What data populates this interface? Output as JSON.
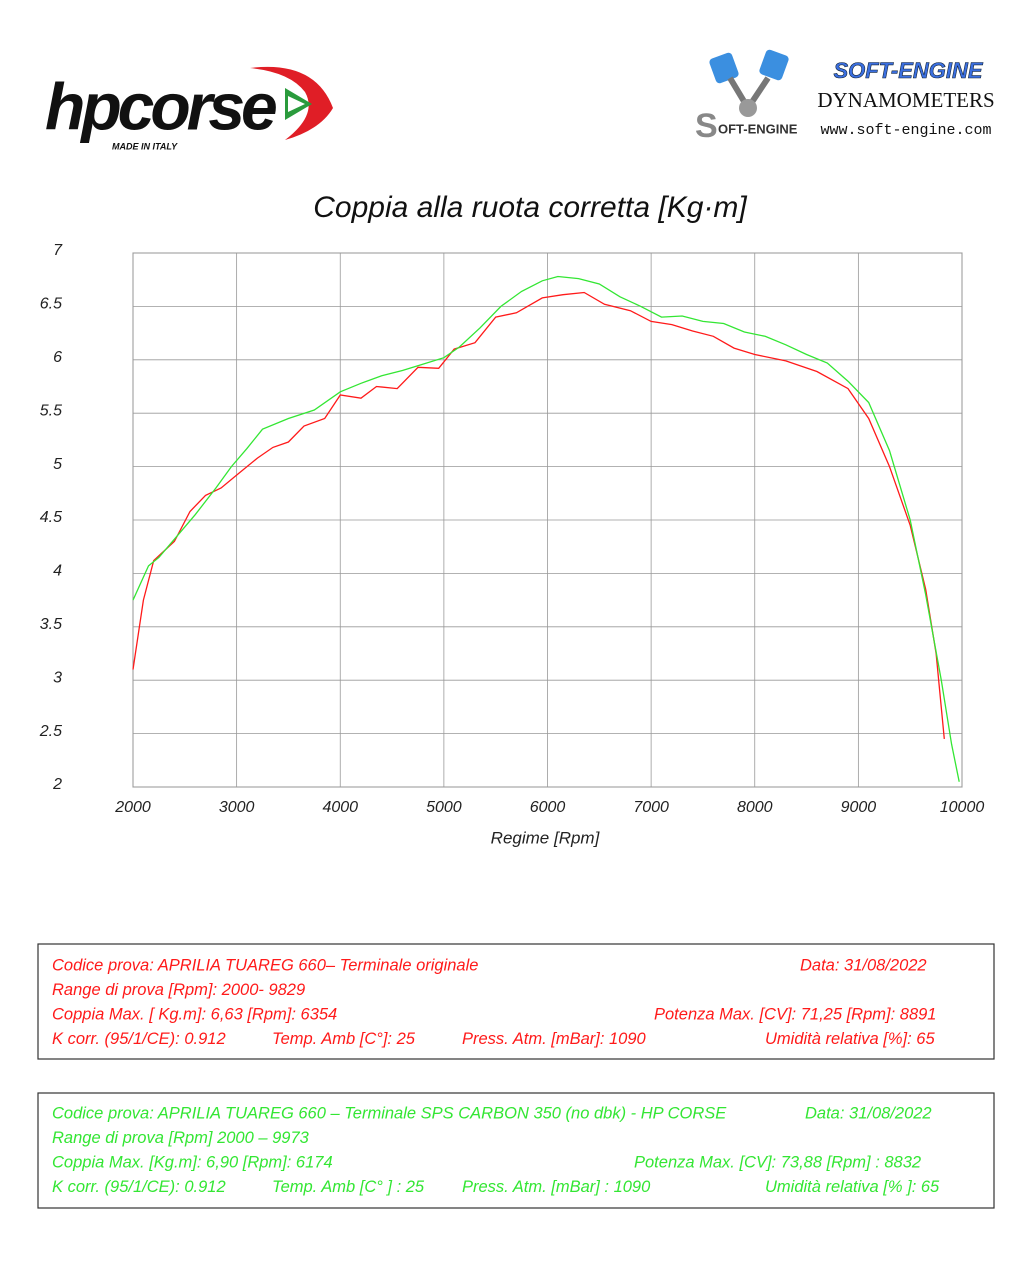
{
  "header": {
    "brand": "hpcorse",
    "brand_tagline": "MADE IN ITALY",
    "dyno_name": "SOFT-ENGINE",
    "dyno_type": "DYNAMOMETERS",
    "dyno_url": "www.soft-engine.com",
    "dyno_logo": "OFT-ENGINE"
  },
  "chart_data": {
    "type": "line",
    "title": "Coppia alla ruota corretta [Kg·m]",
    "x_label": "Regime [Rpm]",
    "xlim": [
      2000,
      10000
    ],
    "xticks": [
      2000,
      3000,
      4000,
      5000,
      6000,
      7000,
      8000,
      9000,
      10000
    ],
    "ylim": [
      2,
      7
    ],
    "yticks": [
      2,
      2.5,
      3,
      3.5,
      4,
      4.5,
      5,
      5.5,
      6,
      6.5,
      7
    ],
    "grid": true,
    "series": [
      {
        "color": "#ff1a1a",
        "x": [
          2000,
          2100,
          2200,
          2400,
          2550,
          2700,
          2850,
          3000,
          3200,
          3350,
          3500,
          3650,
          3850,
          4000,
          4200,
          4350,
          4550,
          4750,
          4950,
          5100,
          5300,
          5500,
          5700,
          5950,
          6150,
          6354,
          6550,
          6800,
          7000,
          7200,
          7400,
          7600,
          7800,
          8000,
          8300,
          8600,
          8900,
          9100,
          9300,
          9500,
          9650,
          9750,
          9829
        ],
        "values": [
          3.1,
          3.75,
          4.12,
          4.3,
          4.58,
          4.73,
          4.8,
          4.92,
          5.08,
          5.18,
          5.23,
          5.38,
          5.45,
          5.67,
          5.64,
          5.75,
          5.73,
          5.93,
          5.92,
          6.1,
          6.16,
          6.4,
          6.44,
          6.58,
          6.61,
          6.63,
          6.52,
          6.46,
          6.36,
          6.33,
          6.27,
          6.22,
          6.11,
          6.05,
          5.99,
          5.89,
          5.73,
          5.45,
          5.0,
          4.45,
          3.85,
          3.25,
          2.45
        ]
      },
      {
        "color": "#33e633",
        "x": [
          2000,
          2150,
          2250,
          2400,
          2600,
          2800,
          2950,
          3100,
          3250,
          3500,
          3750,
          4000,
          4200,
          4400,
          4600,
          4800,
          5000,
          5150,
          5350,
          5550,
          5750,
          5950,
          6100,
          6300,
          6500,
          6700,
          6900,
          7100,
          7300,
          7500,
          7700,
          7900,
          8100,
          8300,
          8500,
          8700,
          8900,
          9100,
          9300,
          9500,
          9650,
          9800,
          9900,
          9973
        ],
        "values": [
          3.75,
          4.07,
          4.15,
          4.32,
          4.55,
          4.8,
          5.0,
          5.17,
          5.35,
          5.45,
          5.53,
          5.7,
          5.78,
          5.85,
          5.9,
          5.96,
          6.02,
          6.12,
          6.3,
          6.5,
          6.64,
          6.74,
          6.78,
          6.76,
          6.71,
          6.59,
          6.5,
          6.4,
          6.41,
          6.36,
          6.34,
          6.26,
          6.22,
          6.14,
          6.05,
          5.97,
          5.8,
          5.6,
          5.15,
          4.5,
          3.8,
          3.0,
          2.4,
          2.05
        ]
      }
    ]
  },
  "tests": [
    {
      "rows": [
        [
          "Codice prova: APRILIA TUAREG 660– Terminale originale",
          "Data: 31/08/2022"
        ],
        [
          "Range di prova  [Rpm]: 2000- 9829"
        ],
        [
          "Coppia Max. [ Kg.m]:  6,63 [Rpm]: 6354",
          "Potenza Max. [CV]:  71,25  [Rpm]: 8891"
        ],
        [
          "K corr. (95/1/CE): 0.912",
          "Temp. Amb  [C°]: 25",
          "Press. Atm.  [mBar]: 1090",
          "Umidità relativa [%]: 65"
        ]
      ]
    },
    {
      "rows": [
        [
          "Codice prova: APRILIA TUAREG 660 – Terminale SPS CARBON 350  (no dbk) - HP CORSE",
          "Data: 31/08/2022"
        ],
        [
          "Range di prova [Rpm] 2000 – 9973"
        ],
        [
          "Coppia Max.  [Kg.m]:  6,90  [Rpm]:  6174",
          "Potenza Max. [CV]:  73,88   [Rpm] : 8832"
        ],
        [
          "K corr. (95/1/CE): 0.912",
          "Temp. Amb [C° ] : 25",
          "Press. Atm. [mBar] : 1090",
          "Umidità relativa [% ]: 65"
        ]
      ]
    }
  ]
}
